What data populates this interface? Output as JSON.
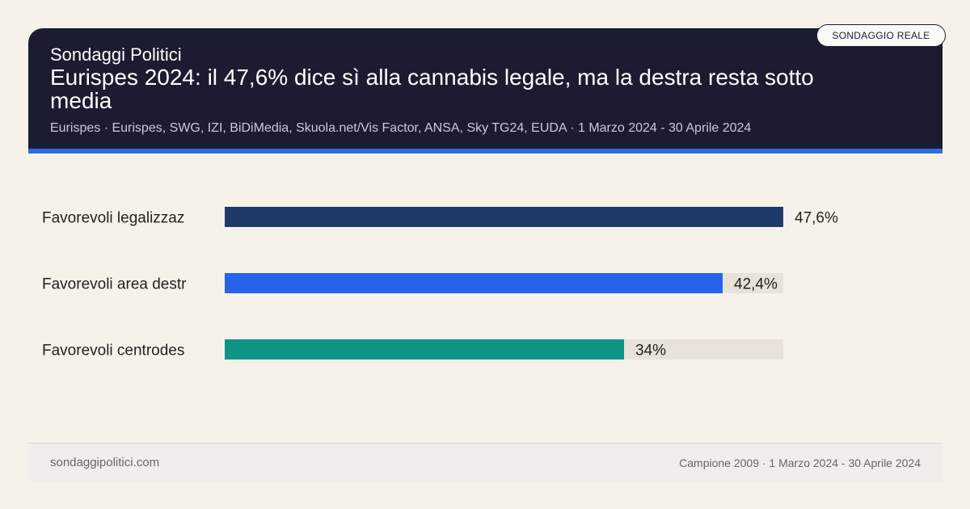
{
  "header": {
    "kicker": "Sondaggi Politici",
    "title": "Eurispes 2024: il 47,6% dice sì alla cannabis legale, ma la destra resta sotto media",
    "meta": "Eurispes · Eurispes, SWG, IZI, BiDiMedia, Skuola.net/Vis Factor, ANSA, Sky TG24, EUDA · 1 Marzo 2024 - 30 Aprile 2024",
    "badge": "SONDAGGIO REALE"
  },
  "chart_data": {
    "type": "bar",
    "orientation": "horizontal",
    "categories": [
      "Favorevoli legalizzaz",
      "Favorevoli area destr",
      "Favorevoli centrodes"
    ],
    "values": [
      47.6,
      42.4,
      34
    ],
    "value_labels": [
      "47,6%",
      "42,4%",
      "34%"
    ],
    "colors": [
      "#1e3a6b",
      "#2563eb",
      "#0f9488"
    ],
    "track_color": "#e8e2da",
    "xlim": [
      0,
      47.6
    ],
    "grid": false
  },
  "footer": {
    "site": "sondaggipolitici.com",
    "info": "Campione 2009 · 1 Marzo 2024 - 30 Aprile 2024"
  }
}
